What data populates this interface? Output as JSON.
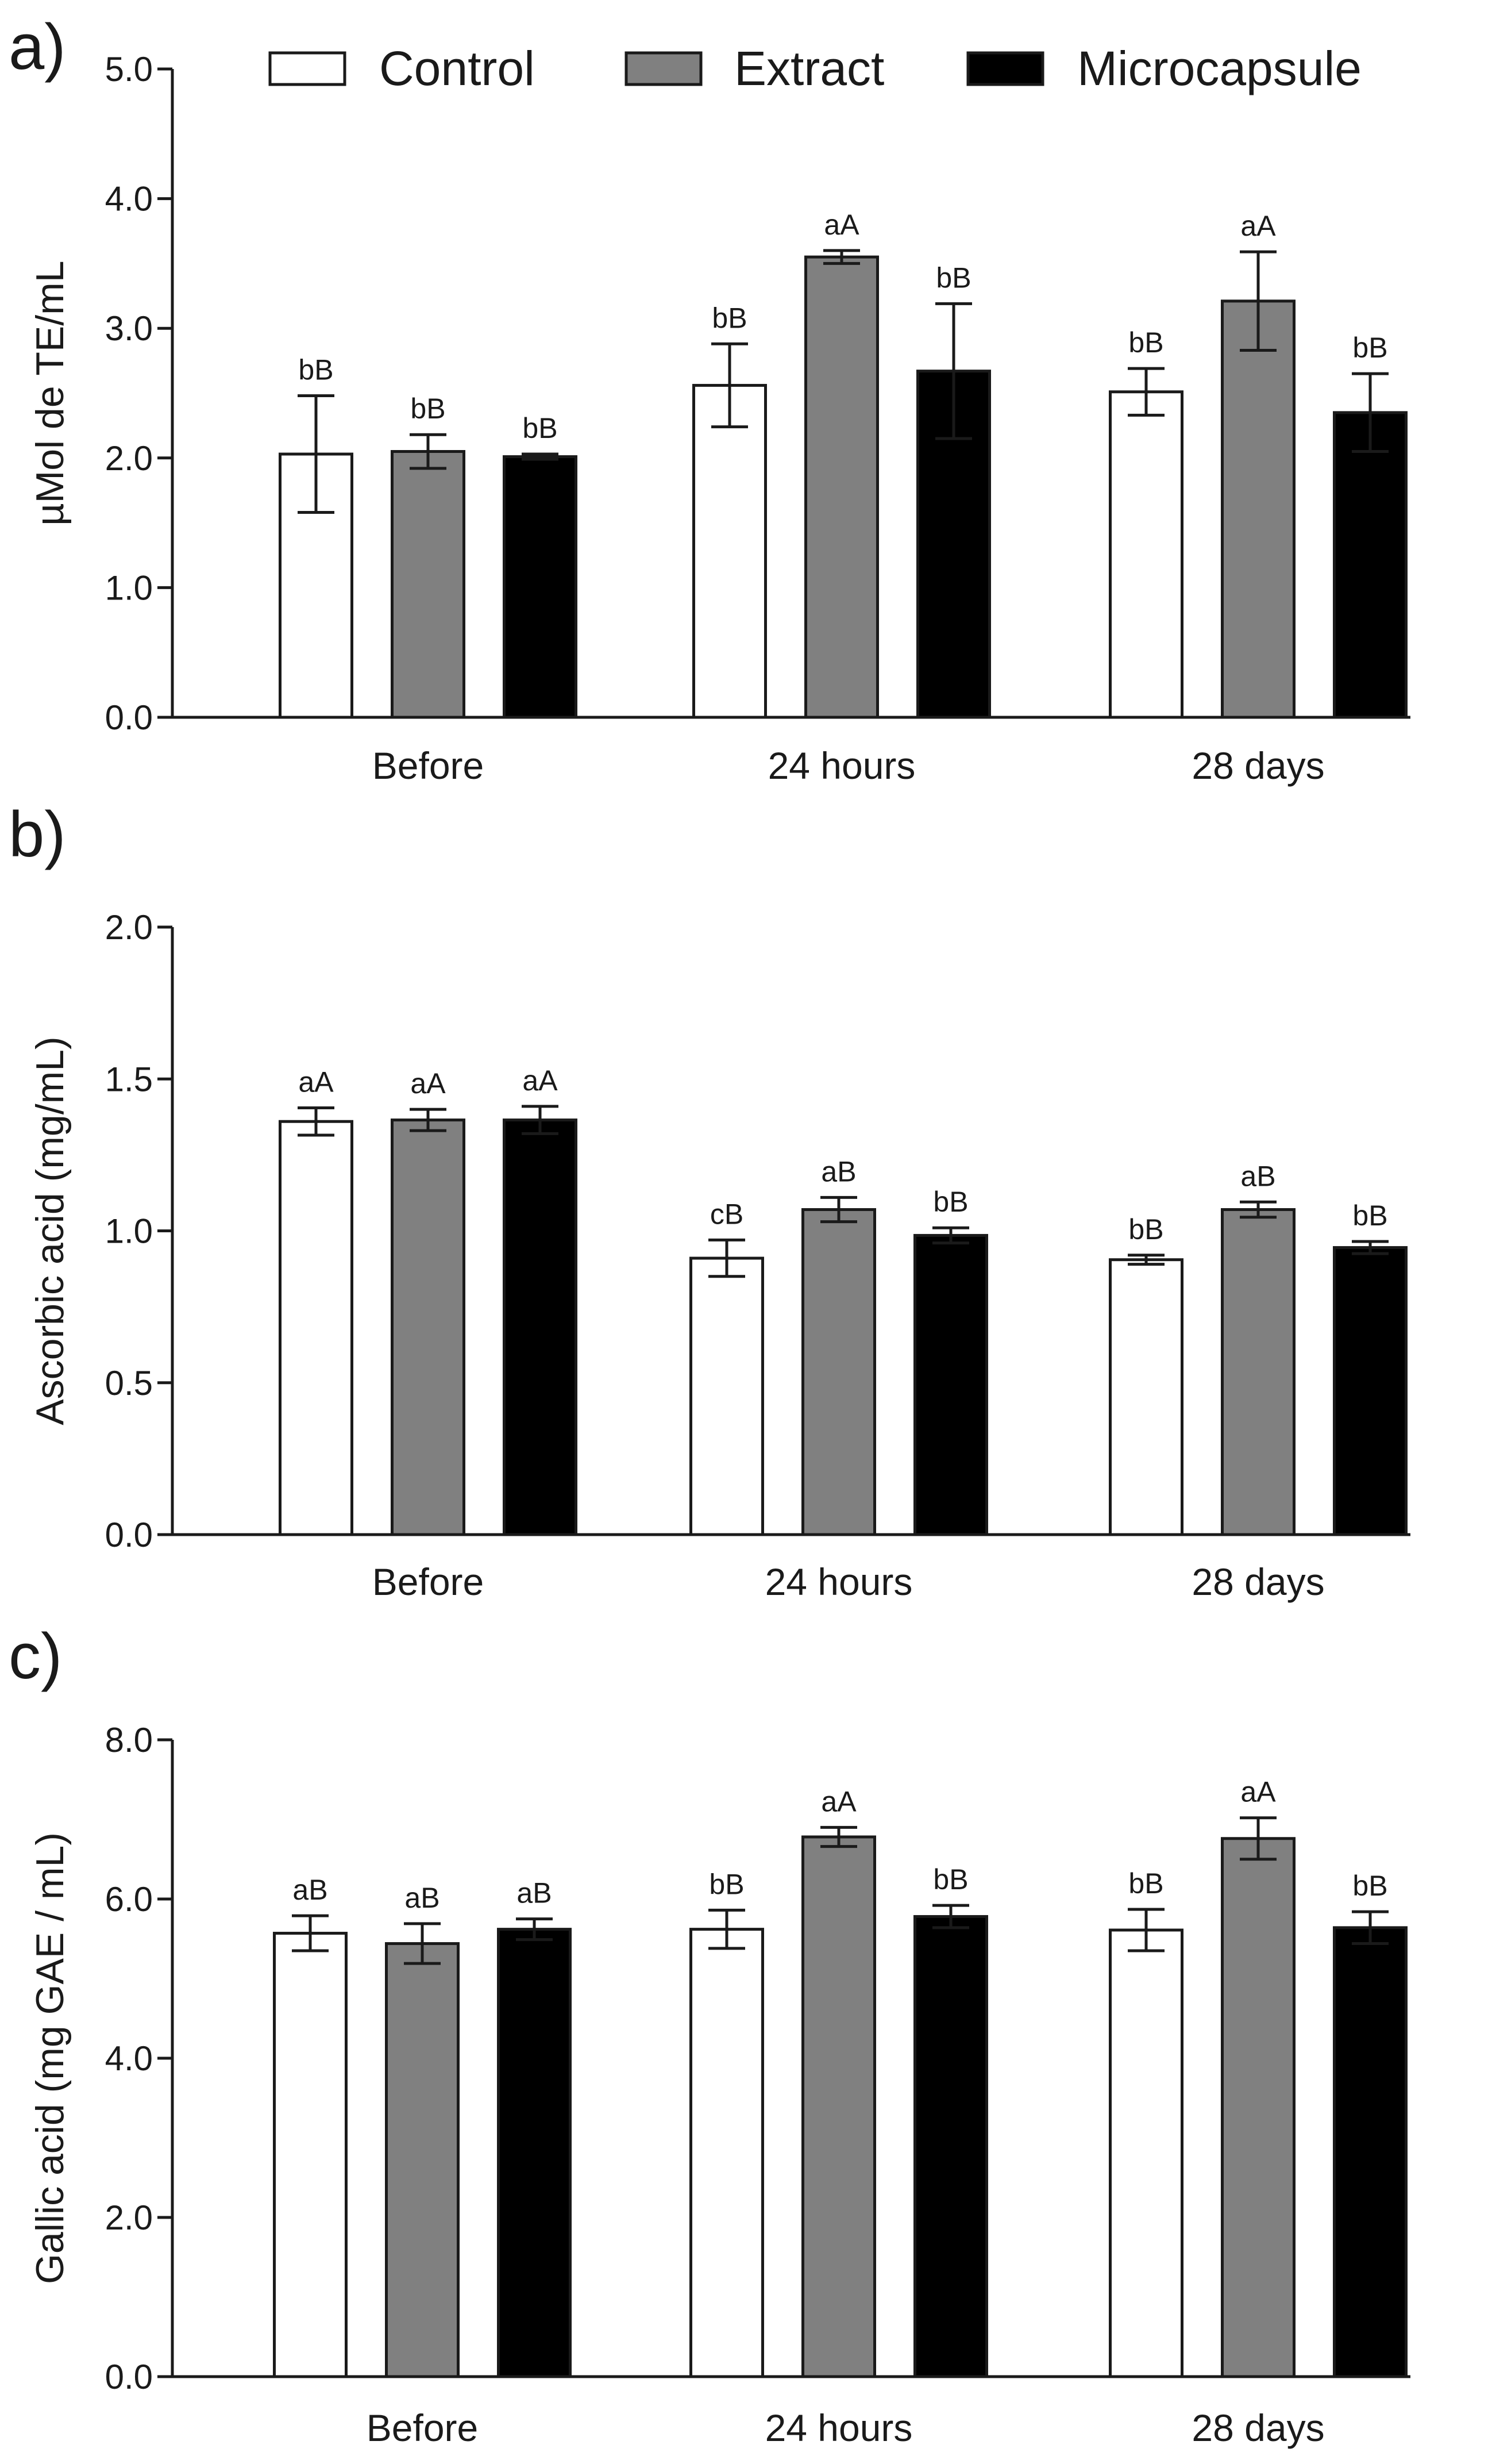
{
  "legend": {
    "items": [
      {
        "name": "Control",
        "color": "#ffffff"
      },
      {
        "name": "Extract",
        "color": "#808080"
      },
      {
        "name": "Microcapsule",
        "color": "#000000"
      }
    ]
  },
  "chart_data": [
    {
      "panel": "a)",
      "type": "bar",
      "title": "",
      "ylabel": "µMol de TE/mL",
      "xlabel": "",
      "ylim": [
        0,
        5.0
      ],
      "yticks": [
        "0.0",
        "1.0",
        "2.0",
        "3.0",
        "4.0",
        "5.0"
      ],
      "categories": [
        "Before",
        "24 hours",
        "28 days"
      ],
      "series": [
        {
          "name": "Control",
          "values": [
            2.03,
            2.56,
            2.51
          ],
          "errors": [
            0.45,
            0.32,
            0.18
          ],
          "labels": [
            "bB",
            "bB",
            "bB"
          ]
        },
        {
          "name": "Extract",
          "values": [
            2.05,
            3.55,
            3.21
          ],
          "errors": [
            0.13,
            0.05,
            0.38
          ],
          "labels": [
            "bB",
            "aA",
            "aA"
          ]
        },
        {
          "name": "Microcapsule",
          "values": [
            2.01,
            2.67,
            2.35
          ],
          "errors": [
            0.02,
            0.52,
            0.3
          ],
          "labels": [
            "bB",
            "bB",
            "bB"
          ]
        }
      ]
    },
    {
      "panel": "b)",
      "type": "bar",
      "title": "",
      "ylabel": "Ascorbic acid (mg/mL)",
      "xlabel": "",
      "ylim": [
        0,
        2.0
      ],
      "yticks": [
        "0.0",
        "0.5",
        "1.0",
        "1.5",
        "2.0"
      ],
      "categories": [
        "Before",
        "24 hours",
        "28 days"
      ],
      "series": [
        {
          "name": "Control",
          "values": [
            1.36,
            0.91,
            0.905
          ],
          "errors": [
            0.045,
            0.06,
            0.015
          ],
          "labels": [
            "aA",
            "cB",
            "bB"
          ]
        },
        {
          "name": "Extract",
          "values": [
            1.365,
            1.07,
            1.07
          ],
          "errors": [
            0.035,
            0.04,
            0.025
          ],
          "labels": [
            "aA",
            "aB",
            "aB"
          ]
        },
        {
          "name": "Microcapsule",
          "values": [
            1.365,
            0.985,
            0.945
          ],
          "errors": [
            0.045,
            0.025,
            0.02
          ],
          "labels": [
            "aA",
            "bB",
            "bB"
          ]
        }
      ]
    },
    {
      "panel": "c)",
      "type": "bar",
      "title": "",
      "ylabel": "Gallic acid (mg GAE / mL)",
      "xlabel": "",
      "ylim": [
        0,
        8.0
      ],
      "yticks": [
        "0.0",
        "2.0",
        "4.0",
        "6.0",
        "8.0"
      ],
      "categories": [
        "Before",
        "24 hours",
        "28 days"
      ],
      "series": [
        {
          "name": "Control",
          "values": [
            5.57,
            5.62,
            5.61
          ],
          "errors": [
            0.22,
            0.24,
            0.26
          ],
          "labels": [
            "aB",
            "bB",
            "bB"
          ]
        },
        {
          "name": "Extract",
          "values": [
            5.44,
            6.78,
            6.76
          ],
          "errors": [
            0.25,
            0.12,
            0.26
          ],
          "labels": [
            "aB",
            "aA",
            "aA"
          ]
        },
        {
          "name": "Microcapsule",
          "values": [
            5.62,
            5.78,
            5.64
          ],
          "errors": [
            0.13,
            0.14,
            0.2
          ],
          "labels": [
            "aB",
            "bB",
            "bB"
          ]
        }
      ]
    }
  ]
}
